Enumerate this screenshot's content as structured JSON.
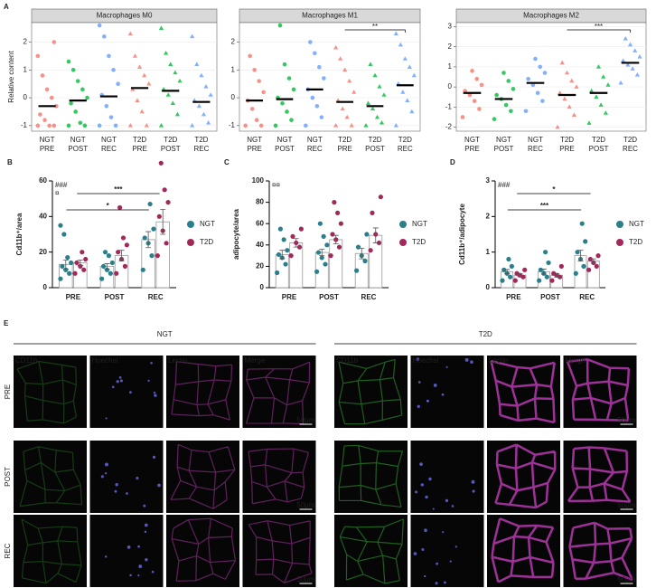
{
  "chart_data": [
    {
      "panel_label": "A",
      "type": "dot",
      "title": "Macrophages M0",
      "ylabel": "Relative content",
      "categories": [
        [
          "NGT",
          "PRE"
        ],
        [
          "NGT",
          "POST"
        ],
        [
          "NGT",
          "REC"
        ],
        [
          "T2D",
          "PRE"
        ],
        [
          "T2D",
          "POST"
        ],
        [
          "T2D",
          "REC"
        ]
      ],
      "colors": [
        "#f8766d",
        "#00ba38",
        "#619cff",
        "#f8766d",
        "#00ba38",
        "#619cff"
      ],
      "markers": [
        "circle",
        "circle",
        "circle",
        "triangle",
        "triangle",
        "triangle"
      ],
      "points": [
        [
          -1,
          -1,
          -1,
          -0.8,
          -0.6,
          -0.3,
          0,
          0.3,
          0.8,
          1.5,
          2.0
        ],
        [
          -1,
          -1,
          -0.9,
          -0.5,
          -0.2,
          0,
          0.3,
          0.6,
          1.0,
          1.3
        ],
        [
          -1,
          -1,
          -0.7,
          -0.3,
          0.1,
          0.5,
          1.0,
          1.5,
          2.2,
          2.6
        ],
        [
          -1,
          -1,
          -0.5,
          -0.1,
          0.3,
          0.5,
          0.8,
          1.1,
          1.5,
          2.3
        ],
        [
          -1,
          -0.6,
          -0.2,
          0.1,
          0.3,
          0.6,
          0.9,
          1.2,
          1.6,
          2.5
        ],
        [
          -1,
          -0.9,
          -0.6,
          -0.3,
          -0.1,
          0.1,
          0.4,
          0.8,
          1.2,
          2.2
        ]
      ],
      "medians": [
        -0.3,
        -0.1,
        0.05,
        0.35,
        0.25,
        -0.15
      ],
      "ylim": [
        -1.2,
        2.7
      ],
      "yticks": [
        -1,
        0,
        1,
        2
      ],
      "grid": true,
      "comparisons": []
    },
    {
      "panel_label": null,
      "type": "dot",
      "title": "Macrophages M1",
      "categories": [
        [
          "NGT",
          "PRE"
        ],
        [
          "NGT",
          "POST"
        ],
        [
          "NGT",
          "REC"
        ],
        [
          "T2D",
          "PRE"
        ],
        [
          "T2D",
          "POST"
        ],
        [
          "T2D",
          "REC"
        ]
      ],
      "colors": [
        "#f8766d",
        "#00ba38",
        "#619cff",
        "#f8766d",
        "#00ba38",
        "#619cff"
      ],
      "markers": [
        "circle",
        "circle",
        "circle",
        "triangle",
        "triangle",
        "triangle"
      ],
      "points": [
        [
          -1,
          -1,
          -0.8,
          -0.4,
          -0.1,
          0.2,
          0.6,
          1.0,
          1.5
        ],
        [
          -1,
          -0.8,
          -0.5,
          -0.2,
          0,
          0.3,
          0.7,
          1.2,
          2.6
        ],
        [
          -1,
          -0.7,
          -0.3,
          0,
          0.3,
          0.7,
          1.1,
          1.6,
          2.0
        ],
        [
          -1,
          -1,
          -0.7,
          -0.4,
          -0.1,
          0.2,
          0.6,
          1.0,
          1.4,
          1.8
        ],
        [
          -1,
          -0.9,
          -0.7,
          -0.4,
          -0.2,
          0.1,
          0.4,
          0.8,
          1.2
        ],
        [
          -1,
          -0.5,
          -0.1,
          0.2,
          0.5,
          0.8,
          1.1,
          1.4,
          1.9,
          2.3
        ]
      ],
      "medians": [
        -0.1,
        -0.05,
        0.3,
        -0.15,
        -0.3,
        0.45
      ],
      "ylim": [
        -1.2,
        2.7
      ],
      "yticks": [
        -1,
        0,
        1,
        2
      ],
      "grid": true,
      "comparisons": [
        {
          "label": "**",
          "from": 3,
          "to": 5
        }
      ]
    },
    {
      "panel_label": null,
      "type": "dot",
      "title": "Macrophages M2",
      "categories": [
        [
          "NGT",
          "PRE"
        ],
        [
          "NGT",
          "POST"
        ],
        [
          "NGT",
          "REC"
        ],
        [
          "T2D",
          "PRE"
        ],
        [
          "T2D",
          "POST"
        ],
        [
          "T2D",
          "REC"
        ]
      ],
      "colors": [
        "#f8766d",
        "#00ba38",
        "#619cff",
        "#f8766d",
        "#00ba38",
        "#619cff"
      ],
      "markers": [
        "circle",
        "circle",
        "circle",
        "triangle",
        "triangle",
        "triangle"
      ],
      "points": [
        [
          -1.5,
          -1.1,
          -0.7,
          -0.4,
          -0.2,
          0.1,
          0.4,
          0.8
        ],
        [
          -1.6,
          -1.2,
          -0.9,
          -0.6,
          -0.4,
          -0.1,
          0.3,
          0.7
        ],
        [
          -1.2,
          -0.7,
          -0.3,
          0.1,
          0.4,
          0.7,
          1.0,
          1.4
        ],
        [
          -2.0,
          -1.4,
          -1.0,
          -0.6,
          -0.3,
          0,
          0.3,
          0.7,
          1.2
        ],
        [
          -1.8,
          -1.3,
          -0.9,
          -0.5,
          -0.2,
          0.1,
          0.5,
          1.0
        ],
        [
          0.2,
          0.6,
          0.9,
          1.1,
          1.3,
          1.5,
          1.8,
          2.1,
          2.4
        ]
      ],
      "medians": [
        -0.3,
        -0.6,
        0.2,
        -0.4,
        -0.3,
        1.2
      ],
      "ylim": [
        -2.2,
        3.2
      ],
      "yticks": [
        -2,
        -1,
        0,
        1,
        2,
        3
      ],
      "grid": true,
      "comparisons": [
        {
          "label": "***",
          "from": 3,
          "to": 5
        }
      ]
    },
    {
      "panel_label": "B",
      "type": "bar",
      "ylabel": "Cd11b⁺/area",
      "categories": [
        "PRE",
        "POST",
        "REC"
      ],
      "series": [
        {
          "name": "NGT",
          "color": "#2a7f8a",
          "values": [
            13,
            12,
            27
          ],
          "errors": [
            2.5,
            1.5,
            4.5
          ],
          "points": [
            [
              5,
              8,
              10,
              12,
              14,
              17,
              30,
              35
            ],
            [
              5,
              8,
              10,
              12,
              14,
              18,
              20
            ],
            [
              10,
              18,
              25,
              28,
              33,
              47
            ]
          ]
        },
        {
          "name": "T2D",
          "color": "#a3285a",
          "values": [
            14,
            18,
            37
          ],
          "errors": [
            1.5,
            3,
            7
          ],
          "points": [
            [
              8,
              10,
              12,
              14,
              16,
              20
            ],
            [
              8,
              12,
              16,
              20,
              24,
              28,
              45
            ],
            [
              18,
              25,
              32,
              40,
              48,
              55,
              70
            ]
          ]
        }
      ],
      "ylim": [
        0,
        60
      ],
      "yticks": [
        0,
        20,
        40,
        60
      ],
      "notes": [
        "###",
        "¤"
      ],
      "comparisons": [
        {
          "label": "*",
          "from": 0,
          "to": 2
        },
        {
          "label": "***",
          "from": 0,
          "to": 2
        }
      ]
    },
    {
      "panel_label": "C",
      "type": "bar",
      "ylabel": "adipocyte/area",
      "categories": [
        "PRE",
        "POST",
        "REC"
      ],
      "series": [
        {
          "name": "NGT",
          "color": "#2a7f8a",
          "values": [
            31,
            33,
            32
          ],
          "errors": [
            4,
            3,
            5
          ],
          "points": [
            [
              14,
              22,
              28,
              31,
              35,
              45,
              55
            ],
            [
              15,
              22,
              28,
              33,
              40,
              48,
              60
            ],
            [
              16,
              25,
              30,
              38,
              50
            ]
          ]
        },
        {
          "name": "T2D",
          "color": "#a3285a",
          "values": [
            42,
            45,
            49
          ],
          "errors": [
            4,
            4,
            7
          ],
          "points": [
            [
              30,
              38,
              42,
              48,
              55
            ],
            [
              30,
              38,
              45,
              50,
              60,
              70,
              80
            ],
            [
              35,
              42,
              50,
              70,
              85
            ]
          ]
        }
      ],
      "ylim": [
        0,
        100
      ],
      "yticks": [
        0,
        20,
        40,
        60,
        80,
        100
      ],
      "notes": [
        "¤¤"
      ],
      "comparisons": []
    },
    {
      "panel_label": "D",
      "type": "bar",
      "ylabel": "Cd11b⁺/adipocyte",
      "categories": [
        "PRE",
        "POST",
        "REC"
      ],
      "series": [
        {
          "name": "NGT",
          "color": "#2a7f8a",
          "values": [
            0.45,
            0.45,
            0.9
          ],
          "errors": [
            0.06,
            0.07,
            0.15
          ],
          "points": [
            [
              0.2,
              0.3,
              0.4,
              0.5,
              0.6,
              0.8
            ],
            [
              0.2,
              0.3,
              0.4,
              0.5,
              0.7,
              1.0
            ],
            [
              0.4,
              0.6,
              0.8,
              1.0,
              1.3,
              1.8
            ]
          ]
        },
        {
          "name": "T2D",
          "color": "#a3285a",
          "values": [
            0.35,
            0.35,
            0.75
          ],
          "errors": [
            0.04,
            0.05,
            0.06
          ],
          "points": [
            [
              0.2,
              0.3,
              0.35,
              0.4,
              0.5
            ],
            [
              0.2,
              0.3,
              0.35,
              0.4,
              0.6
            ],
            [
              0.5,
              0.6,
              0.7,
              0.8,
              0.9
            ]
          ]
        }
      ],
      "ylim": [
        0,
        3
      ],
      "yticks": [
        0,
        1,
        2,
        3
      ],
      "notes": [
        "###"
      ],
      "comparisons": [
        {
          "label": "***",
          "from": 0,
          "to": 2
        },
        {
          "label": "*",
          "from": 0,
          "to": 2
        }
      ]
    }
  ],
  "image_panel": {
    "panel_label": "E",
    "groups": [
      "NGT",
      "T2D"
    ],
    "channels": [
      "CD11b",
      "Hoechst",
      "Lectin",
      "Merge"
    ],
    "channel_colors": [
      "#3fcf3f",
      "#6a6ae8",
      "#d040c8",
      "#ffffff"
    ],
    "rows": [
      "PRE",
      "POST",
      "REC"
    ],
    "scale_bar": "50µm"
  }
}
